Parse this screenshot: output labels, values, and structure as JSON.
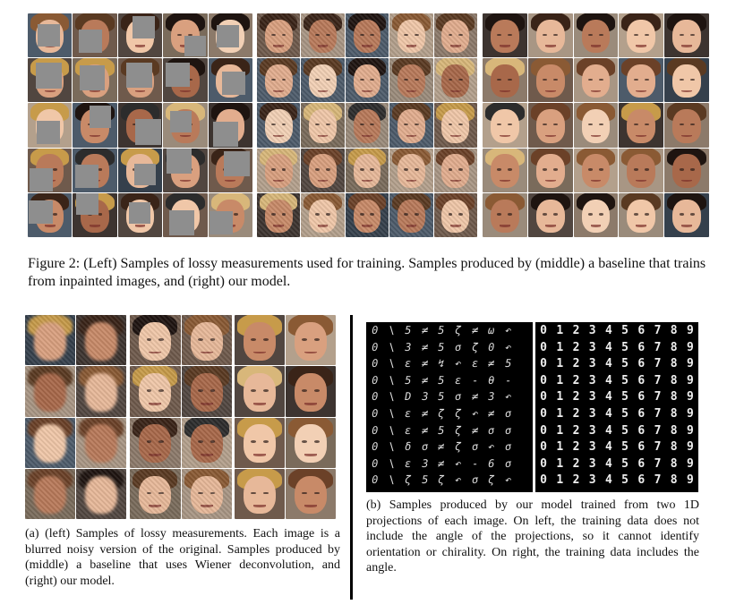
{
  "figure2": {
    "caption": "Figure 2: (Left) Samples of lossy measurements used for training. Samples produced by (middle) a baseline that trains from inpainted images, and (right) our model.",
    "panels": [
      "lossy-measurements",
      "baseline-inpainted",
      "our-model"
    ]
  },
  "figure_a": {
    "caption": "(a) (left) Samples of lossy measurements. Each image is a blurred noisy version of the original. Samples produced by (middle) a baseline that uses Wiener deconvolution, and (right) our model.",
    "panels": [
      "blurred-noisy",
      "wiener-baseline",
      "our-model"
    ]
  },
  "figure_b": {
    "caption": "(b) Samples produced by our model trained from two 1D projections of each image. On left, the training data does not include the angle of the projections, so it cannot identify orientation or chirality. On right, the training data includes the angle.",
    "left_rows": [
      "0\\5≠5ζ≠ω↶",
      "0\\3≠5σζ0↶",
      "0\\ε≠↯↶ε≠5",
      "0\\5≠5ε-θ-",
      "0\\D35σ≠3↶",
      "0\\ε≠ζζ↶≠σ",
      "0\\ε≠5ζ≠σσ",
      "0\\δσ≠ζσ↶σ",
      "0\\ε3≠↶-6σ",
      "0\\ζ5ζ↶σζ↶"
    ],
    "right_rows": [
      "0123456789",
      "0123456789",
      "0123456789",
      "0123456789",
      "0123456789",
      "0123456789",
      "0123456789",
      "0123456789",
      "0123456789",
      "0123456789"
    ]
  },
  "colors": {
    "mask_gray": "#8e8e8e",
    "divider": "#000000",
    "mnist_bg": "#000000"
  }
}
